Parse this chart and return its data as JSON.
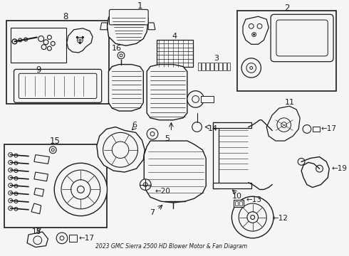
{
  "title": "2023 GMC Sierra 2500 HD Blower Motor & Fan Diagram",
  "bg_color": "#f5f5f5",
  "line_color": "#1a1a1a",
  "fig_width": 4.9,
  "fig_height": 3.6,
  "dpi": 100
}
